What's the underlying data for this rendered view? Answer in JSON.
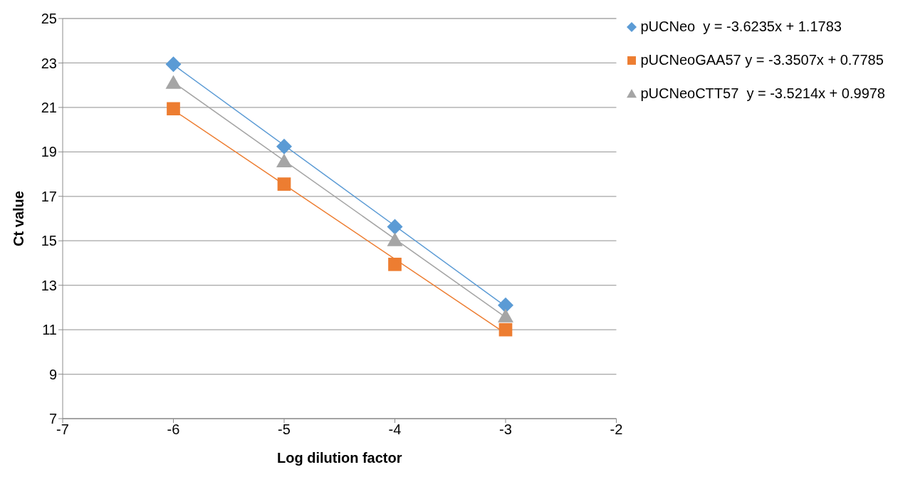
{
  "chart_data": {
    "type": "scatter",
    "xlabel": "Log dilution factor",
    "ylabel": "Ct value",
    "xlim": [
      -7,
      -2
    ],
    "xticks": [
      -7,
      -6,
      -5,
      -4,
      -3,
      -2
    ],
    "ylim": [
      7,
      25
    ],
    "yticks": [
      7,
      9,
      11,
      13,
      15,
      17,
      19,
      21,
      23,
      25
    ],
    "grid": "y",
    "legend": "top right",
    "series": [
      {
        "name": "pUCNeo  y = -3.6235x + 1.1783",
        "marker": "diamond",
        "color": "#5b9bd5",
        "x": [
          -6,
          -5,
          -4,
          -3
        ],
        "values": [
          22.94,
          19.24,
          15.63,
          12.1
        ]
      },
      {
        "name": "pUCNeoGAA57 y = -3.3507x + 0.7785",
        "marker": "square",
        "color": "#ed7d31",
        "x": [
          -6,
          -5,
          -4,
          -3
        ],
        "values": [
          20.94,
          17.55,
          13.94,
          11.0
        ]
      },
      {
        "name": "pUCNeoCTT57  y = -3.5214x + 0.9978",
        "marker": "triangle",
        "color": "#a5a5a5",
        "x": [
          -6,
          -5,
          -4,
          -3
        ],
        "values": [
          22.1,
          18.57,
          15.02,
          11.6
        ]
      },
      {
        "type": "line",
        "color": "#5b9bd5",
        "line_style": "solid",
        "x": [
          -6,
          -3
        ],
        "values": [
          22.92,
          12.05
        ]
      },
      {
        "type": "line",
        "color": "#ed7d31",
        "line_style": "solid",
        "x": [
          -6,
          -3
        ],
        "values": [
          20.88,
          10.83
        ]
      },
      {
        "type": "line",
        "color": "#a5a5a5",
        "line_style": "solid",
        "x": [
          -6,
          -3
        ],
        "values": [
          22.13,
          11.56
        ]
      }
    ]
  }
}
